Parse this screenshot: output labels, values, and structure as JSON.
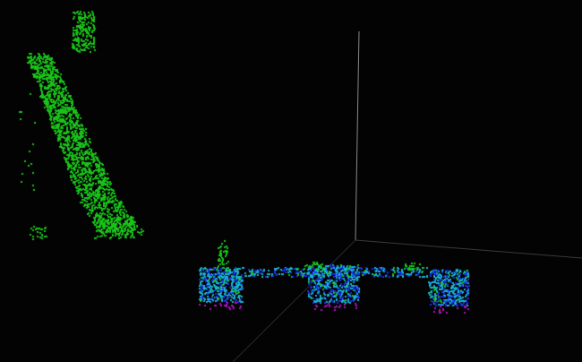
{
  "viewer": {
    "background": "#030303",
    "axis_color": "#8a8a8a",
    "grid_color": "#2a2a2a",
    "point_colors": {
      "vegetation": "#19c219",
      "structure_cyan": "#19b4d2",
      "structure_blue": "#1a33e6",
      "ground_magenta": "#b010c8"
    }
  }
}
